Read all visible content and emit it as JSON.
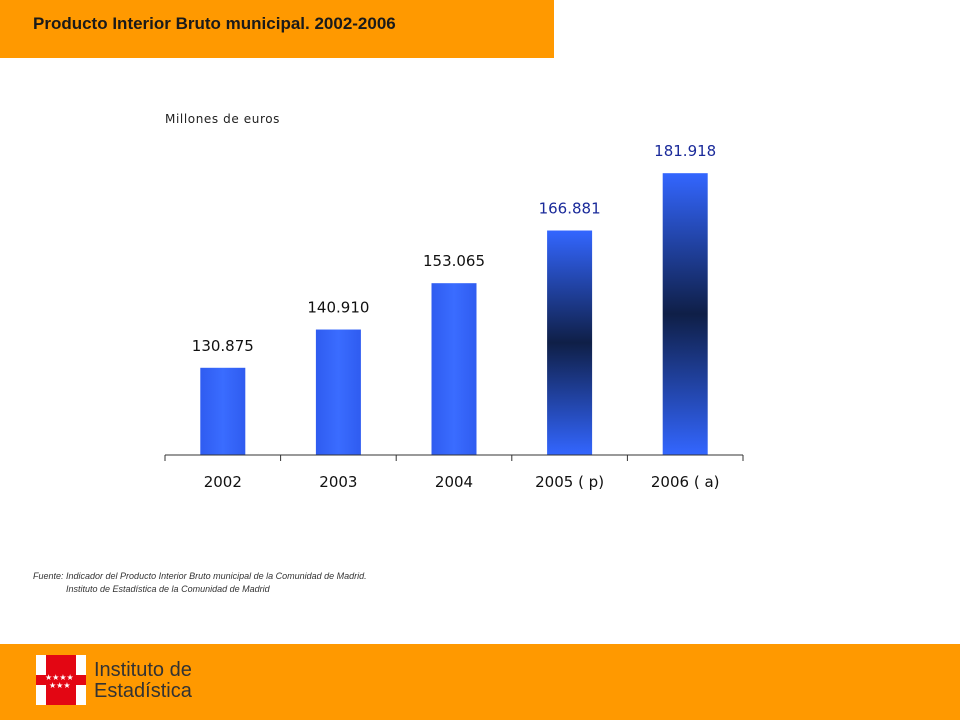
{
  "header": {
    "title": "Producto Interior Bruto municipal. 2002-2006"
  },
  "chart_data": {
    "type": "bar",
    "title": "Producto Interior Bruto municipal. 2002-2006",
    "ylabel": "Millones de euros",
    "xlabel": "",
    "categories": [
      "2002",
      "2003",
      "2004",
      "2005 ( p)",
      "2006 ( a)"
    ],
    "values": [
      130875,
      140910,
      153065,
      166881,
      181918
    ],
    "value_labels": [
      "130.875",
      "140.910",
      "153.065",
      "166.881",
      "181.918"
    ],
    "ylim": [
      108000,
      188000
    ],
    "grid": false,
    "colors": {
      "bar": "#3366ff",
      "bar_dark": "#0f1f47",
      "label_dark": "#111111",
      "label_blue": "#1a2a9a",
      "axis": "#333333"
    }
  },
  "source": {
    "line1": "Fuente: Indicador del Producto Interior Bruto municipal de la Comunidad de Madrid.",
    "line2": "Instituto de Estadística de la Comunidad de Madrid"
  },
  "footer": {
    "logo_line1": "Instituto de",
    "logo_line2": "Estadística",
    "logo_icon": "comunidad-de-madrid-stars-icon",
    "accent": "#ff9900"
  }
}
